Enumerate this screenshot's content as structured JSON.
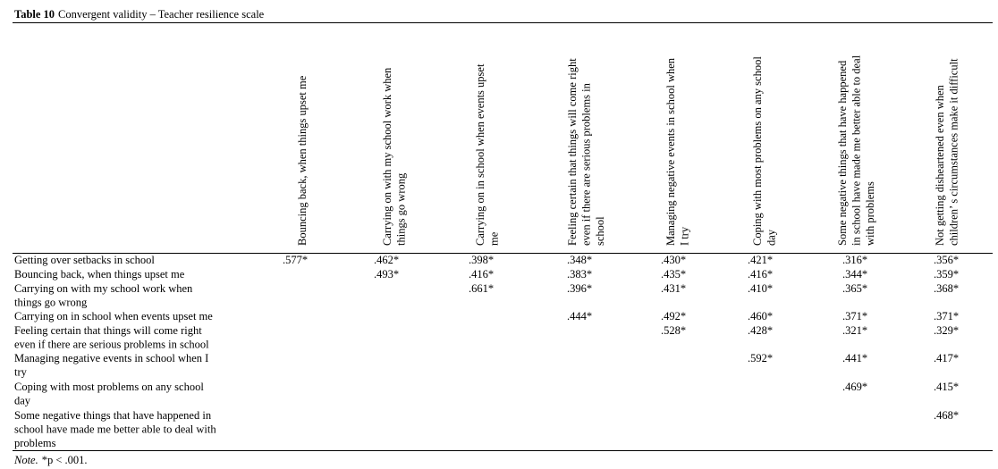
{
  "header": {
    "label": "Table 10",
    "title": "Convergent validity – Teacher resilience scale"
  },
  "table": {
    "columns": [
      [
        "Bouncing back, when things upset me"
      ],
      [
        "Carrying on with my school work when",
        "things go wrong"
      ],
      [
        "Carrying on in school when events upset",
        "me"
      ],
      [
        "Feeling certain that things will come right",
        "even if there are serious problems in",
        "school"
      ],
      [
        "Managing negative events in school when",
        "I try"
      ],
      [
        "Coping with most problems on any school",
        "day"
      ],
      [
        "Some negative things that have happened",
        "in school have made me better able to deal",
        "with problems"
      ],
      [
        "Not getting disheartened even when",
        "children’ s circumstances make it difficult"
      ]
    ],
    "rows": [
      {
        "label": [
          "Getting over setbacks in school"
        ],
        "values": [
          ".577*",
          ".462*",
          ".398*",
          ".348*",
          ".430*",
          ".421*",
          ".316*",
          ".356*"
        ]
      },
      {
        "label": [
          "Bouncing back, when things upset me"
        ],
        "values": [
          null,
          ".493*",
          ".416*",
          ".383*",
          ".435*",
          ".416*",
          ".344*",
          ".359*"
        ]
      },
      {
        "label": [
          "Carrying on with my school work when",
          "things go wrong"
        ],
        "values": [
          null,
          null,
          ".661*",
          ".396*",
          ".431*",
          ".410*",
          ".365*",
          ".368*"
        ]
      },
      {
        "label": [
          "Carrying on in school when events upset me"
        ],
        "values": [
          null,
          null,
          null,
          ".444*",
          ".492*",
          ".460*",
          ".371*",
          ".371*"
        ]
      },
      {
        "label": [
          "Feeling certain that things will come right",
          "even if there are serious problems in school"
        ],
        "values": [
          null,
          null,
          null,
          null,
          ".528*",
          ".428*",
          ".321*",
          ".329*"
        ]
      },
      {
        "label": [
          "Managing negative events in school when I",
          "try"
        ],
        "values": [
          null,
          null,
          null,
          null,
          null,
          ".592*",
          ".441*",
          ".417*"
        ]
      },
      {
        "label": [
          "Coping with most problems on any school",
          "day"
        ],
        "values": [
          null,
          null,
          null,
          null,
          null,
          null,
          ".469*",
          ".415*"
        ]
      },
      {
        "label": [
          "Some negative things that have happened in",
          "school have made me better able to deal with",
          "problems"
        ],
        "values": [
          null,
          null,
          null,
          null,
          null,
          null,
          null,
          ".468*"
        ]
      }
    ]
  },
  "note": {
    "label": "Note.",
    "text": "*p < .001."
  }
}
